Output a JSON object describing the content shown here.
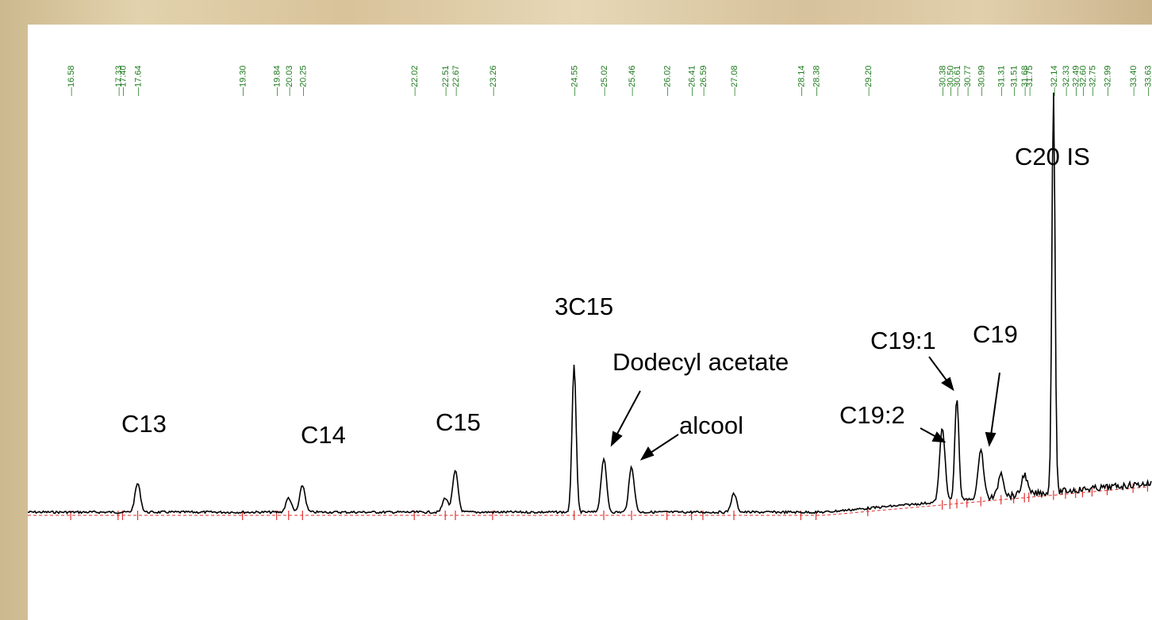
{
  "colors": {
    "trace": "#000000",
    "retention_labels": "#1f7a1f",
    "baseline": "#e03030",
    "panel_background": "#ffffff",
    "page_background": "#dcc9a4"
  },
  "chart_data": {
    "type": "line",
    "title": "",
    "xlabel": "",
    "ylabel": "",
    "xlim": [
      15.9,
      33.7
    ],
    "grid": false,
    "retention_times": [
      "16.58",
      "17.33",
      "17.40",
      "17.64",
      "19.30",
      "19.84",
      "20.03",
      "20.25",
      "22.02",
      "22.51",
      "22.67",
      "23.26",
      "24.55",
      "25.02",
      "25.46",
      "26.02",
      "26.41",
      "26.59",
      "27.08",
      "28.14",
      "28.38",
      "29.20",
      "30.38",
      "30.50",
      "30.61",
      "30.77",
      "30.99",
      "31.31",
      "31.51",
      "31.68",
      "31.75",
      "32.14",
      "32.33",
      "32.49",
      "32.60",
      "32.75",
      "32.99",
      "33.40",
      "33.63"
    ],
    "peaks": [
      {
        "rt": 17.64,
        "height": 0.07,
        "label": "C13"
      },
      {
        "rt": 20.03,
        "height": 0.035,
        "label": ""
      },
      {
        "rt": 20.25,
        "height": 0.065,
        "label": "C14"
      },
      {
        "rt": 22.51,
        "height": 0.035,
        "label": ""
      },
      {
        "rt": 22.67,
        "height": 0.1,
        "label": "C15"
      },
      {
        "rt": 24.55,
        "height": 0.36,
        "label": "3C15"
      },
      {
        "rt": 25.02,
        "height": 0.13,
        "label": "Dodecyl acetate"
      },
      {
        "rt": 25.46,
        "height": 0.11,
        "label": "alcool"
      },
      {
        "rt": 27.08,
        "height": 0.045,
        "label": ""
      },
      {
        "rt": 30.38,
        "height": 0.18,
        "label": "C19:2"
      },
      {
        "rt": 30.61,
        "height": 0.25,
        "label": "C19:1"
      },
      {
        "rt": 30.99,
        "height": 0.12,
        "label": "C19"
      },
      {
        "rt": 31.31,
        "height": 0.06,
        "label": ""
      },
      {
        "rt": 31.68,
        "height": 0.05,
        "label": ""
      },
      {
        "rt": 32.14,
        "height": 0.98,
        "label": "C20 IS"
      }
    ],
    "annotations": {
      "c13": "C13",
      "c14": "C14",
      "c15": "C15",
      "c3c15": "3C15",
      "dodecyl": "Dodecyl acetate",
      "alcool": "alcool",
      "c19_2": "C19:2",
      "c19_1": "C19:1",
      "c19": "C19",
      "c20is": "C20 IS"
    }
  }
}
